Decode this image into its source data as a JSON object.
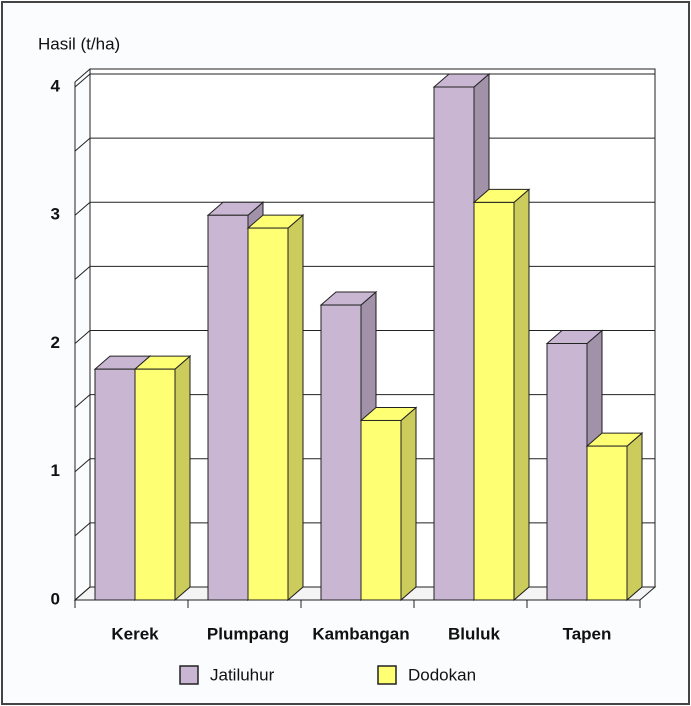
{
  "chart_data": {
    "type": "bar3d",
    "y_label": "Hasil (t/ha)",
    "categories": [
      "Kerek",
      "Plumpang",
      "Kambangan",
      "Bluluk",
      "Tapen"
    ],
    "series": [
      {
        "name": "Jatiluhur",
        "color": "#c9b6d3",
        "values": [
          1.8,
          3.0,
          2.3,
          4.0,
          2.0
        ]
      },
      {
        "name": "Dodokan",
        "color": "#ffff73",
        "values": [
          1.8,
          2.9,
          1.4,
          3.1,
          1.2
        ]
      }
    ],
    "ylim": [
      0,
      4
    ],
    "yticks": [
      0,
      1,
      2,
      3,
      4
    ],
    "minor_yticks": [
      0.5,
      1.5,
      2.5,
      3.5
    ],
    "grid": true
  }
}
